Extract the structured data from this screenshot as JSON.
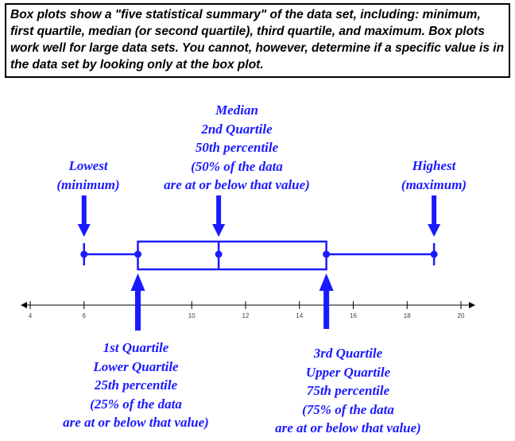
{
  "intro_text": "Box plots show a \"five statistical summary\" of the data set, including: minimum, first quartile, median (or second quartile), third quartile, and maximum.  Box plots work well for large data sets.  You cannot, however, determine if a specific value is in the data set by looking only at the box plot.",
  "labels": {
    "lowest": [
      "Lowest",
      "(minimum)"
    ],
    "median": [
      "Median",
      "2nd Quartile",
      "50th percentile",
      "(50% of the data",
      "are at or below that value)"
    ],
    "highest": [
      "Highest",
      "(maximum)"
    ],
    "q1": [
      "1st Quartile",
      "Lower Quartile",
      "25th percentile",
      "(25% of the data",
      "are at or below that value)"
    ],
    "q3": [
      "3rd Quartile",
      "Upper Quartile",
      "75th percentile",
      "(75% of the data",
      "are at or below that value)"
    ]
  },
  "colors": {
    "plot": "#1a1aff",
    "axis": "#000000"
  },
  "chart_data": {
    "type": "boxplot",
    "min": 6,
    "q1": 8,
    "median": 11,
    "q3": 15,
    "max": 19,
    "xlim": [
      4,
      20
    ],
    "ticks": [
      4,
      6,
      10,
      12,
      14,
      16,
      18,
      20
    ]
  }
}
